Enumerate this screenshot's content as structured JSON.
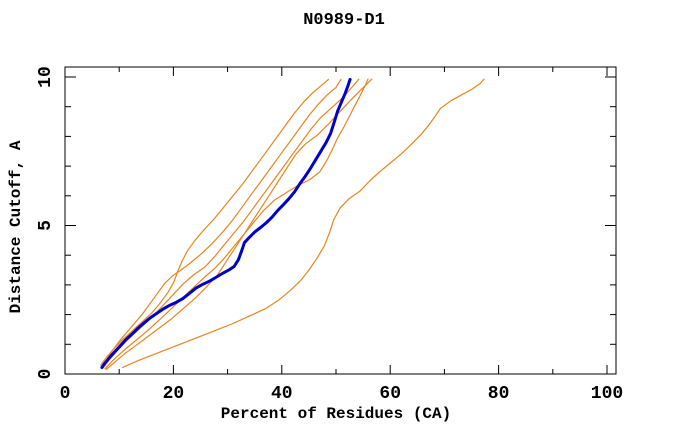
{
  "window": {
    "background_color": "#ffffff"
  },
  "chart_data": {
    "type": "line",
    "title": "N0989-D1",
    "xlabel": "Percent of Residues (CA)",
    "ylabel": "Distance Cutoff, A",
    "xlim": [
      0,
      101.7
    ],
    "ylim": [
      0,
      10.34
    ],
    "x_major_ticks": [
      0,
      20,
      40,
      60,
      80,
      100
    ],
    "x_minor_ticks": [
      10,
      30,
      50,
      70,
      90
    ],
    "y_major_ticks": [
      0,
      5,
      10
    ],
    "y_minor_ticks": [
      1,
      2,
      3,
      4,
      6,
      7,
      8,
      9
    ],
    "grid": false,
    "legend": "none",
    "colors": {
      "model_lines": "#e8851f",
      "highlight_line": "#0000cd",
      "axis": "#000000",
      "background": "#ffffff"
    },
    "series": [
      {
        "name": "orange-model-1",
        "color_role": "model_lines",
        "stroke_width": 1.2,
        "points": [
          [
            6.6,
            0.3
          ],
          [
            7.6,
            0.55
          ],
          [
            9.0,
            0.85
          ],
          [
            10.6,
            1.15
          ],
          [
            12.4,
            1.45
          ],
          [
            14.2,
            1.75
          ],
          [
            16.0,
            2.05
          ],
          [
            17.6,
            2.4
          ],
          [
            19.0,
            2.75
          ],
          [
            20.1,
            3.1
          ],
          [
            20.8,
            3.45
          ],
          [
            21.6,
            3.8
          ],
          [
            22.6,
            4.15
          ],
          [
            24.0,
            4.5
          ],
          [
            25.6,
            4.85
          ],
          [
            27.4,
            5.2
          ],
          [
            29.2,
            5.6
          ],
          [
            31.0,
            6.0
          ],
          [
            32.8,
            6.4
          ],
          [
            34.4,
            6.8
          ],
          [
            36.0,
            7.2
          ],
          [
            37.6,
            7.6
          ],
          [
            39.2,
            8.0
          ],
          [
            40.8,
            8.4
          ],
          [
            42.4,
            8.8
          ],
          [
            44.0,
            9.15
          ],
          [
            45.6,
            9.45
          ],
          [
            47.2,
            9.7
          ],
          [
            48.6,
            9.92
          ]
        ]
      },
      {
        "name": "orange-model-2",
        "color_role": "model_lines",
        "stroke_width": 1.2,
        "points": [
          [
            6.8,
            0.25
          ],
          [
            7.8,
            0.5
          ],
          [
            8.8,
            0.8
          ],
          [
            10.0,
            1.1
          ],
          [
            11.4,
            1.4
          ],
          [
            12.8,
            1.7
          ],
          [
            14.2,
            2.0
          ],
          [
            15.6,
            2.35
          ],
          [
            17.0,
            2.7
          ],
          [
            18.4,
            3.05
          ],
          [
            19.8,
            3.3
          ],
          [
            21.4,
            3.5
          ],
          [
            23.2,
            3.75
          ],
          [
            25.2,
            4.05
          ],
          [
            27.2,
            4.4
          ],
          [
            29.2,
            4.8
          ],
          [
            31.0,
            5.2
          ],
          [
            32.8,
            5.65
          ],
          [
            34.6,
            6.1
          ],
          [
            36.4,
            6.55
          ],
          [
            38.2,
            7.0
          ],
          [
            40.0,
            7.45
          ],
          [
            41.8,
            7.9
          ],
          [
            43.6,
            8.35
          ],
          [
            45.2,
            8.75
          ],
          [
            46.8,
            9.1
          ],
          [
            48.4,
            9.4
          ],
          [
            50.0,
            9.65
          ],
          [
            50.9,
            9.92
          ]
        ]
      },
      {
        "name": "orange-model-3",
        "color_role": "model_lines",
        "stroke_width": 1.2,
        "points": [
          [
            7.0,
            0.2
          ],
          [
            8.2,
            0.48
          ],
          [
            9.6,
            0.78
          ],
          [
            11.2,
            1.08
          ],
          [
            12.9,
            1.38
          ],
          [
            14.7,
            1.68
          ],
          [
            16.5,
            2.0
          ],
          [
            18.3,
            2.35
          ],
          [
            20.1,
            2.7
          ],
          [
            21.9,
            3.05
          ],
          [
            23.8,
            3.35
          ],
          [
            25.8,
            3.6
          ],
          [
            27.6,
            3.95
          ],
          [
            29.4,
            4.35
          ],
          [
            31.2,
            4.75
          ],
          [
            33.0,
            5.15
          ],
          [
            34.8,
            5.6
          ],
          [
            36.6,
            6.05
          ],
          [
            38.4,
            6.5
          ],
          [
            40.2,
            6.95
          ],
          [
            42.0,
            7.4
          ],
          [
            43.8,
            7.85
          ],
          [
            45.4,
            8.25
          ],
          [
            47.0,
            8.6
          ],
          [
            48.8,
            8.9
          ],
          [
            50.6,
            9.2
          ],
          [
            52.2,
            9.5
          ],
          [
            53.4,
            9.75
          ],
          [
            54.2,
            9.93
          ]
        ]
      },
      {
        "name": "orange-model-4",
        "color_role": "model_lines",
        "stroke_width": 1.2,
        "points": [
          [
            7.4,
            0.18
          ],
          [
            8.8,
            0.45
          ],
          [
            10.4,
            0.72
          ],
          [
            12.2,
            1.0
          ],
          [
            14.2,
            1.3
          ],
          [
            16.2,
            1.62
          ],
          [
            18.2,
            1.95
          ],
          [
            20.2,
            2.3
          ],
          [
            22.2,
            2.65
          ],
          [
            24.2,
            3.0
          ],
          [
            26.0,
            3.3
          ],
          [
            27.6,
            3.55
          ],
          [
            29.4,
            3.9
          ],
          [
            31.2,
            4.3
          ],
          [
            33.0,
            4.7
          ],
          [
            34.8,
            5.1
          ],
          [
            36.6,
            5.5
          ],
          [
            38.6,
            5.85
          ],
          [
            40.8,
            6.1
          ],
          [
            43.0,
            6.35
          ],
          [
            45.2,
            6.55
          ],
          [
            47.0,
            6.8
          ],
          [
            48.2,
            7.15
          ],
          [
            49.3,
            7.55
          ],
          [
            50.3,
            7.95
          ],
          [
            51.4,
            8.3
          ],
          [
            52.4,
            8.65
          ],
          [
            53.4,
            9.0
          ],
          [
            54.4,
            9.35
          ],
          [
            55.2,
            9.65
          ],
          [
            55.9,
            9.93
          ]
        ]
      },
      {
        "name": "orange-model-5",
        "color_role": "model_lines",
        "stroke_width": 1.2,
        "points": [
          [
            7.6,
            0.15
          ],
          [
            9.2,
            0.4
          ],
          [
            11.0,
            0.68
          ],
          [
            13.0,
            0.95
          ],
          [
            15.2,
            1.25
          ],
          [
            17.4,
            1.55
          ],
          [
            19.6,
            1.85
          ],
          [
            21.8,
            2.2
          ],
          [
            24.0,
            2.55
          ],
          [
            26.2,
            2.95
          ],
          [
            28.2,
            3.35
          ],
          [
            29.8,
            3.8
          ],
          [
            31.4,
            4.25
          ],
          [
            33.0,
            4.7
          ],
          [
            34.6,
            5.15
          ],
          [
            36.2,
            5.6
          ],
          [
            37.8,
            6.05
          ],
          [
            39.4,
            6.5
          ],
          [
            41.0,
            6.95
          ],
          [
            42.6,
            7.4
          ],
          [
            44.4,
            7.75
          ],
          [
            46.6,
            8.05
          ],
          [
            48.8,
            8.45
          ],
          [
            50.8,
            8.85
          ],
          [
            52.6,
            9.2
          ],
          [
            54.2,
            9.5
          ],
          [
            55.6,
            9.75
          ],
          [
            56.6,
            9.93
          ]
        ]
      },
      {
        "name": "orange-model-6-outlier",
        "color_role": "model_lines",
        "stroke_width": 1.2,
        "points": [
          [
            10.6,
            0.22
          ],
          [
            13.5,
            0.45
          ],
          [
            17.0,
            0.7
          ],
          [
            20.5,
            0.95
          ],
          [
            24.0,
            1.2
          ],
          [
            27.5,
            1.45
          ],
          [
            31.0,
            1.7
          ],
          [
            34.0,
            1.95
          ],
          [
            37.0,
            2.2
          ],
          [
            39.5,
            2.5
          ],
          [
            41.5,
            2.8
          ],
          [
            43.5,
            3.15
          ],
          [
            45.0,
            3.5
          ],
          [
            46.5,
            3.9
          ],
          [
            47.8,
            4.3
          ],
          [
            48.8,
            4.75
          ],
          [
            49.6,
            5.2
          ],
          [
            50.8,
            5.6
          ],
          [
            52.4,
            5.9
          ],
          [
            54.4,
            6.15
          ],
          [
            56.2,
            6.5
          ],
          [
            58.0,
            6.8
          ],
          [
            60.0,
            7.1
          ],
          [
            62.0,
            7.4
          ],
          [
            64.0,
            7.75
          ],
          [
            65.6,
            8.05
          ],
          [
            67.0,
            8.35
          ],
          [
            68.2,
            8.65
          ],
          [
            69.3,
            8.95
          ],
          [
            71.2,
            9.2
          ],
          [
            73.2,
            9.4
          ],
          [
            75.2,
            9.6
          ],
          [
            76.6,
            9.78
          ],
          [
            77.3,
            9.93
          ]
        ]
      },
      {
        "name": "highlighted-model-blue",
        "color_role": "highlight_line",
        "stroke_width": 3,
        "points": [
          [
            6.8,
            0.22
          ],
          [
            7.3,
            0.35
          ],
          [
            8.2,
            0.55
          ],
          [
            9.2,
            0.75
          ],
          [
            10.2,
            0.95
          ],
          [
            11.2,
            1.15
          ],
          [
            12.4,
            1.35
          ],
          [
            13.5,
            1.55
          ],
          [
            14.6,
            1.72
          ],
          [
            15.8,
            1.9
          ],
          [
            17.0,
            2.05
          ],
          [
            18.2,
            2.2
          ],
          [
            19.4,
            2.32
          ],
          [
            20.6,
            2.42
          ],
          [
            21.8,
            2.55
          ],
          [
            23.0,
            2.72
          ],
          [
            24.2,
            2.9
          ],
          [
            25.4,
            3.02
          ],
          [
            26.6,
            3.12
          ],
          [
            27.8,
            3.25
          ],
          [
            29.0,
            3.38
          ],
          [
            30.2,
            3.5
          ],
          [
            31.2,
            3.62
          ],
          [
            32.0,
            3.85
          ],
          [
            32.6,
            4.15
          ],
          [
            33.1,
            4.42
          ],
          [
            34.0,
            4.6
          ],
          [
            35.0,
            4.78
          ],
          [
            36.2,
            4.95
          ],
          [
            37.2,
            5.1
          ],
          [
            38.2,
            5.28
          ],
          [
            39.2,
            5.5
          ],
          [
            40.3,
            5.7
          ],
          [
            41.3,
            5.9
          ],
          [
            42.3,
            6.12
          ],
          [
            43.3,
            6.4
          ],
          [
            44.3,
            6.65
          ],
          [
            45.2,
            6.9
          ],
          [
            46.2,
            7.2
          ],
          [
            47.2,
            7.5
          ],
          [
            48.2,
            7.8
          ],
          [
            49.0,
            8.1
          ],
          [
            49.7,
            8.5
          ],
          [
            50.3,
            8.85
          ],
          [
            51.0,
            9.15
          ],
          [
            51.7,
            9.45
          ],
          [
            52.2,
            9.7
          ],
          [
            52.6,
            9.92
          ]
        ]
      }
    ]
  }
}
